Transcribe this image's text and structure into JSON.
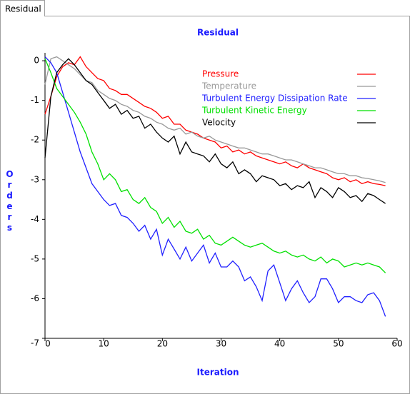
{
  "tab": "Residual",
  "chart_data": {
    "type": "line",
    "title": "Residual",
    "xlabel": "Iteration",
    "ylabel": "Orders",
    "x": [
      0,
      1,
      2,
      3,
      4,
      5,
      6,
      7,
      8,
      9,
      10,
      11,
      12,
      13,
      14,
      15,
      16,
      17,
      18,
      19,
      20,
      21,
      22,
      23,
      24,
      25,
      26,
      27,
      28,
      29,
      30,
      31,
      32,
      33,
      34,
      35,
      36,
      37,
      38,
      39,
      40,
      41,
      42,
      43,
      44,
      45,
      46,
      47,
      48,
      49,
      50,
      51,
      52,
      53,
      54,
      55,
      56,
      57,
      58
    ],
    "xlim": [
      0,
      60
    ],
    "xticks": [
      0,
      10,
      20,
      30,
      40,
      50,
      60
    ],
    "ylim": [
      -7,
      0.2
    ],
    "yticks": [
      -7,
      -6,
      -5,
      -4,
      -3,
      -2,
      -1,
      0
    ],
    "grid": false,
    "legend": "upper right",
    "series": [
      {
        "name": "Pressure",
        "color": "#ff0000",
        "values": [
          -1.35,
          -0.9,
          -0.4,
          -0.15,
          -0.05,
          -0.1,
          0.1,
          -0.15,
          -0.3,
          -0.45,
          -0.5,
          -0.7,
          -0.75,
          -0.85,
          -0.85,
          -0.95,
          -1.05,
          -1.15,
          -1.2,
          -1.3,
          -1.45,
          -1.4,
          -1.6,
          -1.6,
          -1.75,
          -1.8,
          -1.85,
          -1.95,
          -2.0,
          -2.05,
          -2.2,
          -2.15,
          -2.3,
          -2.25,
          -2.35,
          -2.3,
          -2.4,
          -2.45,
          -2.5,
          -2.55,
          -2.6,
          -2.55,
          -2.65,
          -2.7,
          -2.6,
          -2.7,
          -2.75,
          -2.8,
          -2.85,
          -2.95,
          -3.0,
          -2.95,
          -3.05,
          -3.0,
          -3.1,
          -3.05,
          -3.1,
          -3.12,
          -3.15
        ]
      },
      {
        "name": "Temperature",
        "color": "#999999",
        "values": [
          -0.6,
          0.05,
          0.1,
          0.0,
          -0.1,
          -0.2,
          -0.35,
          -0.5,
          -0.55,
          -0.75,
          -0.85,
          -0.95,
          -1.0,
          -1.1,
          -1.15,
          -1.25,
          -1.3,
          -1.4,
          -1.45,
          -1.55,
          -1.6,
          -1.7,
          -1.75,
          -1.7,
          -1.85,
          -1.8,
          -1.9,
          -1.95,
          -1.9,
          -2.0,
          -2.05,
          -2.1,
          -2.15,
          -2.2,
          -2.2,
          -2.25,
          -2.3,
          -2.35,
          -2.35,
          -2.4,
          -2.45,
          -2.5,
          -2.5,
          -2.55,
          -2.6,
          -2.65,
          -2.7,
          -2.7,
          -2.75,
          -2.8,
          -2.85,
          -2.85,
          -2.9,
          -2.9,
          -2.95,
          -2.97,
          -3.0,
          -3.03,
          -3.07
        ]
      },
      {
        "name": "Turbulent Energy Dissipation Rate",
        "color": "#2020ff",
        "values": [
          0.1,
          -0.05,
          -0.3,
          -0.8,
          -1.3,
          -1.8,
          -2.3,
          -2.7,
          -3.1,
          -3.3,
          -3.5,
          -3.65,
          -3.6,
          -3.9,
          -3.95,
          -4.1,
          -4.3,
          -4.15,
          -4.5,
          -4.25,
          -4.9,
          -4.5,
          -4.75,
          -5.0,
          -4.7,
          -5.05,
          -4.85,
          -4.65,
          -5.1,
          -4.85,
          -5.2,
          -5.2,
          -5.05,
          -5.2,
          -5.55,
          -5.45,
          -5.7,
          -6.05,
          -5.3,
          -5.15,
          -5.6,
          -6.05,
          -5.75,
          -5.55,
          -5.85,
          -6.1,
          -5.95,
          -5.5,
          -5.5,
          -5.75,
          -6.1,
          -5.95,
          -5.95,
          -6.05,
          -6.1,
          -5.9,
          -5.85,
          -6.05,
          -6.45
        ]
      },
      {
        "name": "Turbulent Kinetic Energy",
        "color": "#00e000",
        "values": [
          0.05,
          -0.3,
          -0.7,
          -0.9,
          -1.1,
          -1.3,
          -1.55,
          -1.85,
          -2.3,
          -2.6,
          -3.0,
          -2.85,
          -3.0,
          -3.3,
          -3.25,
          -3.5,
          -3.6,
          -3.45,
          -3.7,
          -3.8,
          -4.1,
          -3.95,
          -4.2,
          -4.05,
          -4.3,
          -4.35,
          -4.25,
          -4.5,
          -4.4,
          -4.6,
          -4.65,
          -4.55,
          -4.45,
          -4.55,
          -4.65,
          -4.7,
          -4.65,
          -4.6,
          -4.7,
          -4.8,
          -4.85,
          -4.8,
          -4.9,
          -4.95,
          -4.9,
          -5.0,
          -5.05,
          -4.95,
          -5.1,
          -5.0,
          -5.05,
          -5.2,
          -5.15,
          -5.1,
          -5.15,
          -5.1,
          -5.15,
          -5.2,
          -5.35
        ]
      },
      {
        "name": "Velocity",
        "color": "#000000",
        "values": [
          -2.45,
          -0.9,
          -0.3,
          -0.1,
          0.05,
          -0.1,
          -0.3,
          -0.5,
          -0.6,
          -0.8,
          -1.0,
          -1.2,
          -1.1,
          -1.35,
          -1.25,
          -1.45,
          -1.4,
          -1.7,
          -1.6,
          -1.8,
          -1.95,
          -2.05,
          -1.9,
          -2.35,
          -2.05,
          -2.3,
          -2.35,
          -2.4,
          -2.55,
          -2.35,
          -2.6,
          -2.7,
          -2.55,
          -2.85,
          -2.75,
          -2.85,
          -3.05,
          -2.9,
          -2.95,
          -3.0,
          -3.15,
          -3.1,
          -3.25,
          -3.15,
          -3.2,
          -3.05,
          -3.45,
          -3.2,
          -3.3,
          -3.45,
          -3.2,
          -3.3,
          -3.45,
          -3.4,
          -3.55,
          -3.35,
          -3.4,
          -3.5,
          -3.6
        ]
      }
    ]
  }
}
